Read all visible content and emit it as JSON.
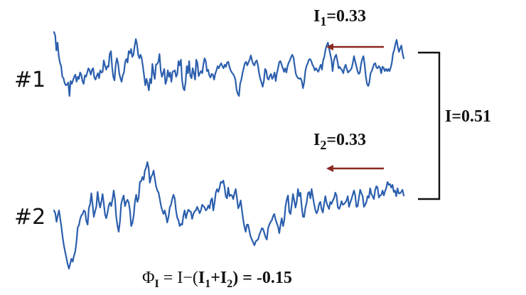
{
  "colors": {
    "trace": "#2c5fad",
    "arrow": "#8b2a22",
    "text": "#111111",
    "bracket": "#111111"
  },
  "series": [
    {
      "label": "#1",
      "info": {
        "symbol": "I",
        "sub": "1",
        "eq": "=0.33"
      },
      "trace_y": [
        45,
        50,
        71,
        60,
        79,
        88,
        93,
        108,
        110,
        117,
        120,
        119,
        116,
        135,
        114,
        118,
        113,
        108,
        105,
        115,
        108,
        111,
        102,
        105,
        114,
        118,
        106,
        108,
        102,
        96,
        99,
        105,
        98,
        96,
        109,
        112,
        107,
        103,
        110,
        99,
        102,
        101,
        85,
        92,
        98,
        93,
        94,
        76,
        72,
        94,
        108,
        113,
        92,
        82,
        89,
        103,
        110,
        115,
        106,
        102,
        87,
        83,
        88,
        72,
        75,
        69,
        80,
        77,
        65,
        55,
        62,
        77,
        82,
        77,
        82,
        94,
        107,
        120,
        111,
        118,
        127,
        111,
        117,
        90,
        103,
        111,
        91,
        90,
        87,
        76,
        99,
        108,
        103,
        97,
        118,
        113,
        99,
        108,
        102,
        115,
        101,
        100,
        99,
        108,
        104,
        86,
        92,
        84,
        112,
        124,
        127,
        115,
        93,
        103,
        86,
        107,
        110,
        96,
        103,
        112,
        84,
        89,
        107,
        103,
        100,
        103,
        91,
        82,
        86,
        100,
        98,
        106,
        109,
        104,
        105,
        112,
        104,
        99,
        93,
        96,
        92,
        89,
        93,
        96,
        91,
        94,
        88,
        87,
        94,
        99,
        102,
        104,
        107,
        112,
        126,
        132,
        135,
        118,
        112,
        103,
        96,
        89,
        87,
        92,
        88,
        84,
        78,
        85,
        90,
        92,
        87,
        85,
        92,
        103,
        111,
        116,
        122,
        114,
        97,
        99,
        110,
        112,
        107,
        104,
        111,
        108,
        102,
        114,
        103,
        96,
        87,
        86,
        91,
        96,
        101,
        96,
        102,
        93,
        88,
        85,
        80,
        77,
        81,
        93,
        104,
        108,
        110,
        111,
        110,
        114,
        124,
        116,
        100,
        93,
        89,
        84,
        83,
        86,
        91,
        94,
        99,
        96,
        99,
        101,
        95,
        91,
        98,
        85,
        80,
        70,
        64,
        60,
        68,
        76,
        84,
        100,
        86,
        80,
        77,
        85,
        96,
        94,
        97,
        99,
        103,
        95,
        91,
        97,
        102,
        100,
        99,
        96,
        89,
        79,
        86,
        93,
        100,
        104,
        102,
        90,
        83,
        79,
        91,
        107,
        118,
        121,
        116,
        103,
        100,
        95,
        90,
        89,
        95,
        96,
        93,
        95,
        103,
        94,
        95,
        100,
        97,
        100,
        97,
        100,
        95,
        88,
        75,
        70,
        62,
        56,
        66,
        73,
        68,
        64,
        75,
        82
      ]
    },
    {
      "label": "#2",
      "info": {
        "symbol": "I",
        "sub": "2",
        "eq": "=0.33"
      },
      "trace_y": [
        296,
        300,
        312,
        303,
        296,
        308,
        320,
        335,
        346,
        355,
        363,
        372,
        378,
        371,
        364,
        368,
        360,
        354,
        341,
        320,
        317,
        308,
        303,
        301,
        296,
        298,
        311,
        316,
        293,
        287,
        272,
        288,
        305,
        297,
        291,
        270,
        283,
        292,
        284,
        273,
        286,
        302,
        307,
        299,
        289,
        285,
        290,
        280,
        268,
        281,
        305,
        318,
        326,
        311,
        287,
        280,
        275,
        290,
        284,
        281,
        285,
        296,
        318,
        314,
        303,
        284,
        274,
        284,
        278,
        256,
        255,
        249,
        253,
        240,
        236,
        228,
        236,
        257,
        249,
        246,
        240,
        251,
        262,
        268,
        271,
        280,
        290,
        296,
        301,
        296,
        304,
        313,
        305,
        292,
        288,
        280,
        274,
        279,
        296,
        306,
        310,
        318,
        315,
        316,
        303,
        296,
        307,
        300,
        295,
        297,
        298,
        308,
        301,
        297,
        296,
        291,
        295,
        300,
        296,
        288,
        290,
        292,
        296,
        294,
        289,
        293,
        282,
        279,
        296,
        285,
        271,
        266,
        270,
        264,
        256,
        257,
        254,
        263,
        276,
        279,
        264,
        276,
        274,
        275,
        280,
        272,
        266,
        279,
        293,
        289,
        282,
        296,
        309,
        319,
        326,
        316,
        316,
        325,
        333,
        337,
        341,
        345,
        340,
        338,
        337,
        330,
        326,
        321,
        322,
        328,
        334,
        337,
        321,
        316,
        312,
        310,
        304,
        301,
        309,
        314,
        319,
        328,
        316,
        307,
        318,
        310,
        290,
        281,
        275,
        298,
        301,
        288,
        273,
        282,
        292,
        284,
        266,
        276,
        271,
        290,
        305,
        305,
        292,
        285,
        272,
        270,
        279,
        266,
        277,
        287,
        296,
        300,
        296,
        287,
        284,
        294,
        299,
        287,
        276,
        285,
        290,
        294,
        284,
        287,
        282,
        279,
        271,
        275,
        291,
        294,
        290,
        283,
        288,
        287,
        285,
        282,
        276,
        291,
        285,
        280,
        274,
        268,
        275,
        291,
        290,
        278,
        267,
        272,
        276,
        291,
        288,
        284,
        276,
        278,
        265,
        273,
        276,
        280,
        268,
        262,
        264,
        278,
        275,
        274,
        268,
        275,
        269,
        264,
        256,
        260,
        259,
        264,
        260,
        270,
        268,
        276,
        265,
        272,
        272,
        270,
        267,
        275
      ]
    }
  ],
  "total": {
    "symbol": "I",
    "eq": "=0.51"
  },
  "formula": {
    "phi": "Φ",
    "phi_sub": "I",
    "rhs_a": " = I−(",
    "i1": "I",
    "i1_sub": "1",
    "plus": "+",
    "i2": "I",
    "i2_sub": "2",
    "rhs_b": ")  =  -0.15"
  }
}
